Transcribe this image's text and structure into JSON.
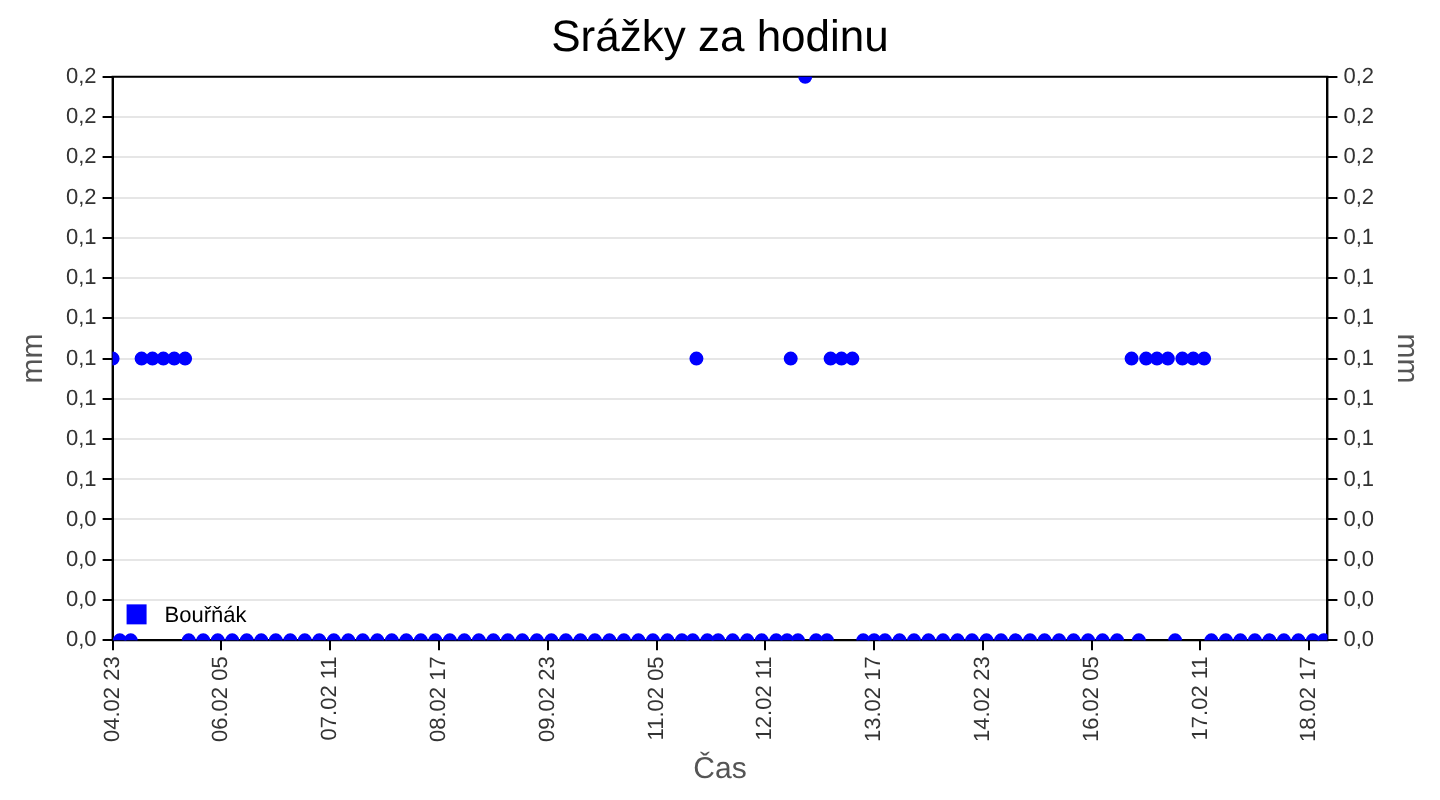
{
  "chart_data": {
    "type": "scatter",
    "title": "Srážky za hodinu",
    "xlabel": "Čas",
    "ylabel": "mm",
    "y2label": "mm",
    "xlim": [
      "--02-04T23:00",
      "--02-18T22:00"
    ],
    "xticks": [
      {
        "value": "--02-04T23:00",
        "label": "04.02 23"
      },
      {
        "value": "--02-06T05:00",
        "label": "06.02 05"
      },
      {
        "value": "--02-07T11:00",
        "label": "07.02 11"
      },
      {
        "value": "--02-08T17:00",
        "label": "08.02 17"
      },
      {
        "value": "--02-09T23:00",
        "label": "09.02 23"
      },
      {
        "value": "--02-11T05:00",
        "label": "11.02 05"
      },
      {
        "value": "--02-12T11:00",
        "label": "12.02 11"
      },
      {
        "value": "--02-13T17:00",
        "label": "13.02 17"
      },
      {
        "value": "--02-14T23:00",
        "label": "14.02 23"
      },
      {
        "value": "--02-16T05:00",
        "label": "16.02 05"
      },
      {
        "value": "--02-17T11:00",
        "label": "17.02 11"
      },
      {
        "value": "--02-18T17:00",
        "label": "18.02 17"
      }
    ],
    "ylim": [
      0,
      0.2
    ],
    "yticks": [
      {
        "value": 0,
        "label": "0,0"
      },
      {
        "value": 0.0143,
        "label": "0,0"
      },
      {
        "value": 0.0286,
        "label": "0,0"
      },
      {
        "value": 0.0429,
        "label": "0,0"
      },
      {
        "value": 0.0571,
        "label": "0,1"
      },
      {
        "value": 0.0714,
        "label": "0,1"
      },
      {
        "value": 0.0857,
        "label": "0,1"
      },
      {
        "value": 0.1,
        "label": "0,1"
      },
      {
        "value": 0.1143,
        "label": "0,1"
      },
      {
        "value": 0.1286,
        "label": "0,1"
      },
      {
        "value": 0.1429,
        "label": "0,1"
      },
      {
        "value": 0.1571,
        "label": "0,2"
      },
      {
        "value": 0.1714,
        "label": "0,2"
      },
      {
        "value": 0.1857,
        "label": "0,2"
      },
      {
        "value": 0.2,
        "label": "0,2"
      }
    ],
    "y2lim": [
      0,
      0.2
    ],
    "y2ticks": [
      {
        "value": 0,
        "label": "0,0"
      },
      {
        "value": 0.0143,
        "label": "0,0"
      },
      {
        "value": 0.0286,
        "label": "0,0"
      },
      {
        "value": 0.0429,
        "label": "0,0"
      },
      {
        "value": 0.0571,
        "label": "0,1"
      },
      {
        "value": 0.0714,
        "label": "0,1"
      },
      {
        "value": 0.0857,
        "label": "0,1"
      },
      {
        "value": 0.1,
        "label": "0,1"
      },
      {
        "value": 0.1143,
        "label": "0,1"
      },
      {
        "value": 0.1286,
        "label": "0,1"
      },
      {
        "value": 0.1429,
        "label": "0,1"
      },
      {
        "value": 0.1571,
        "label": "0,2"
      },
      {
        "value": 0.1714,
        "label": "0,2"
      },
      {
        "value": 0.1857,
        "label": "0,2"
      },
      {
        "value": 0.2,
        "label": "0,2"
      }
    ],
    "grid": "y",
    "legend": "bottom left",
    "marker": "circle",
    "series": [
      {
        "name": "Bouřňák",
        "color": "#0000ff",
        "x": [
          "--02-04T23:00",
          "--02-05T01:00",
          "--02-05T04:00",
          "--02-05T07:00",
          "--02-05T10:00",
          "--02-05T13:00",
          "--02-05T16:00",
          "--02-05T19:00",
          "--02-05T20:00",
          "--02-06T00:00",
          "--02-06T04:00",
          "--02-06T08:00",
          "--02-06T12:00",
          "--02-06T16:00",
          "--02-06T20:00",
          "--02-07T00:00",
          "--02-07T04:00",
          "--02-07T08:00",
          "--02-07T12:00",
          "--02-07T16:00",
          "--02-07T20:00",
          "--02-08T00:00",
          "--02-08T04:00",
          "--02-08T08:00",
          "--02-08T12:00",
          "--02-08T16:00",
          "--02-08T20:00",
          "--02-09T00:00",
          "--02-09T04:00",
          "--02-09T08:00",
          "--02-09T12:00",
          "--02-09T16:00",
          "--02-09T20:00",
          "--02-10T00:00",
          "--02-10T04:00",
          "--02-10T08:00",
          "--02-10T12:00",
          "--02-10T16:00",
          "--02-10T20:00",
          "--02-11T00:00",
          "--02-11T04:00",
          "--02-11T08:00",
          "--02-11T12:00",
          "--02-11T15:00",
          "--02-11T16:00",
          "--02-11T19:00",
          "--02-11T22:00",
          "--02-12T02:00",
          "--02-12T06:00",
          "--02-12T10:00",
          "--02-12T14:00",
          "--02-12T17:00",
          "--02-12T18:00",
          "--02-12T20:00",
          "--02-12T22:00",
          "--02-13T01:00",
          "--02-13T04:00",
          "--02-13T05:00",
          "--02-13T08:00",
          "--02-13T11:00",
          "--02-13T14:00",
          "--02-13T17:00",
          "--02-13T20:00",
          "--02-14T00:00",
          "--02-14T04:00",
          "--02-14T08:00",
          "--02-14T12:00",
          "--02-14T16:00",
          "--02-14T20:00",
          "--02-15T00:00",
          "--02-15T04:00",
          "--02-15T08:00",
          "--02-15T12:00",
          "--02-15T16:00",
          "--02-15T20:00",
          "--02-16T00:00",
          "--02-16T04:00",
          "--02-16T08:00",
          "--02-16T12:00",
          "--02-16T16:00",
          "--02-16T18:00",
          "--02-16T20:00",
          "--02-16T23:00",
          "--02-17T02:00",
          "--02-17T04:00",
          "--02-17T06:00",
          "--02-17T09:00",
          "--02-17T12:00",
          "--02-17T14:00",
          "--02-17T18:00",
          "--02-17T22:00",
          "--02-18T02:00",
          "--02-18T06:00",
          "--02-18T10:00",
          "--02-18T14:00",
          "--02-18T18:00",
          "--02-18T21:00"
        ],
        "values": [
          0.1,
          0,
          0,
          0.1,
          0.1,
          0.1,
          0.1,
          0.1,
          0,
          0,
          0,
          0,
          0,
          0,
          0,
          0,
          0,
          0,
          0,
          0,
          0,
          0,
          0,
          0,
          0,
          0,
          0,
          0,
          0,
          0,
          0,
          0,
          0,
          0,
          0,
          0,
          0,
          0,
          0,
          0,
          0,
          0,
          0,
          0,
          0.1,
          0,
          0,
          0,
          0,
          0,
          0,
          0,
          0.1,
          0,
          0.2,
          0,
          0,
          0.1,
          0.1,
          0.1,
          0,
          0,
          0,
          0,
          0,
          0,
          0,
          0,
          0,
          0,
          0,
          0,
          0,
          0,
          0,
          0,
          0,
          0,
          0,
          0.1,
          0,
          0.1,
          0.1,
          0.1,
          0,
          0.1,
          0.1,
          0.1,
          0,
          0,
          0,
          0,
          0,
          0,
          0,
          0,
          0
        ]
      }
    ]
  }
}
